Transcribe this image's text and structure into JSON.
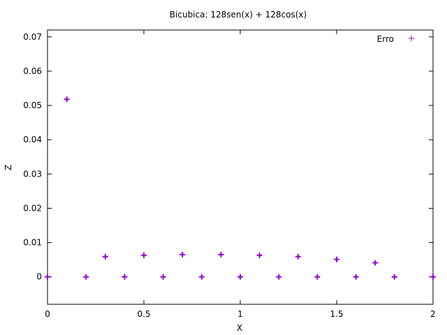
{
  "chart_data": {
    "type": "scatter",
    "title": "Bicubica: 128sen(x) + 128cos(x)",
    "xlabel": "X",
    "ylabel": "Z",
    "xlim": [
      0,
      2
    ],
    "ylim": [
      -0.008,
      0.072
    ],
    "x_ticks": [
      {
        "value": 0,
        "label": "0"
      },
      {
        "value": 0.5,
        "label": "0.5"
      },
      {
        "value": 1,
        "label": "1"
      },
      {
        "value": 1.5,
        "label": "1.5"
      },
      {
        "value": 2,
        "label": "2"
      }
    ],
    "y_ticks": [
      {
        "value": 0,
        "label": "0"
      },
      {
        "value": 0.01,
        "label": "0.01"
      },
      {
        "value": 0.02,
        "label": "0.02"
      },
      {
        "value": 0.03,
        "label": "0.03"
      },
      {
        "value": 0.04,
        "label": "0.04"
      },
      {
        "value": 0.05,
        "label": "0.05"
      },
      {
        "value": 0.06,
        "label": "0.06"
      },
      {
        "value": 0.07,
        "label": "0.07"
      }
    ],
    "grid": false,
    "legend_position": "top-right",
    "series": [
      {
        "name": "Erro",
        "color": "#9400d3",
        "marker": "plus",
        "x": [
          0,
          0.1,
          0.2,
          0.3,
          0.4,
          0.5,
          0.6,
          0.7,
          0.8,
          0.9,
          1.0,
          1.1,
          1.2,
          1.3,
          1.4,
          1.5,
          1.6,
          1.7,
          1.8,
          2.0
        ],
        "y": [
          0,
          0.0518,
          0,
          0.0059,
          0,
          0.0063,
          0,
          0.0065,
          0,
          0.0065,
          0,
          0.0063,
          0,
          0.0059,
          0,
          0.0051,
          0,
          0.0041,
          0,
          0
        ]
      }
    ]
  }
}
